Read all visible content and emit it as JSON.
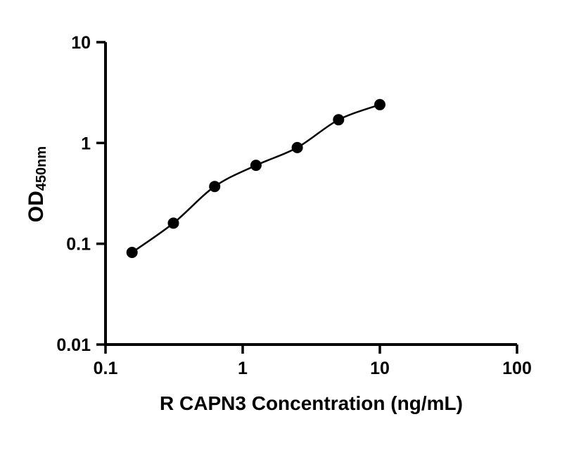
{
  "figure": {
    "background": "#ffffff"
  },
  "chart_data": {
    "type": "scatter",
    "x": [
      0.156,
      0.3125,
      0.625,
      1.25,
      2.5,
      5,
      10
    ],
    "y": [
      0.082,
      0.16,
      0.37,
      0.6,
      0.9,
      1.7,
      2.4
    ],
    "curve": "smooth fitted line through points",
    "xlabel": "R CAPN3 Concentration (ng/mL)",
    "ylabel_main": "OD",
    "ylabel_sub": "450nm",
    "xscale": "log",
    "yscale": "log",
    "xlim": [
      0.1,
      100
    ],
    "ylim": [
      0.01,
      10
    ],
    "xticks": [
      "0.1",
      "1",
      "10",
      "100"
    ],
    "yticks": [
      "0.01",
      "0.1",
      "1",
      "10"
    ],
    "grid": false,
    "legend": null,
    "axis_color": "#000000",
    "line_color": "#000000",
    "marker_color": "#000000",
    "marker_radius": 8
  }
}
